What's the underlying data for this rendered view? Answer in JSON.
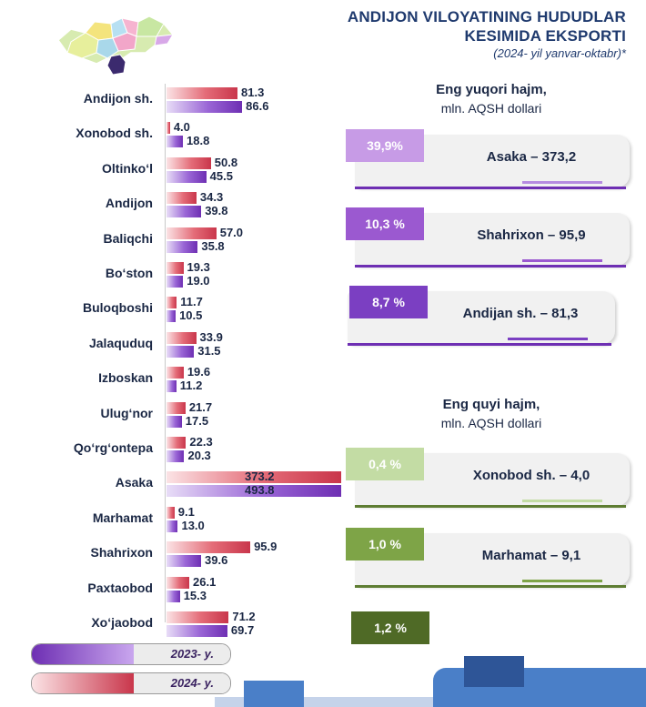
{
  "title": {
    "line1": "ANDIJON VILOYATINING HUDUDLAR",
    "line2": "KESIMIDA EKSPORTI",
    "line3": "(2024- yil yanvar-oktabr)*"
  },
  "colors": {
    "y2024": "#d9455a",
    "y2023": "#7b3fc2",
    "title": "#1f3a6e",
    "text": "#1a2744"
  },
  "icons": {
    "map": "region-map-icon"
  },
  "legend": {
    "y2023": "2023- y.",
    "y2024": "2024- y."
  },
  "chart_data": {
    "type": "bar",
    "orientation": "horizontal",
    "categories": [
      "Andijon sh.",
      "Xonobod sh.",
      "Oltinko‘l",
      "Andijon",
      "Baliqchi",
      "Bo‘ston",
      "Buloqboshi",
      "Jalaquduq",
      "Izboskan",
      "Ulug‘nor",
      "Qo‘rg‘ontepa",
      "Asaka",
      "Marhamat",
      "Shahrixon",
      "Paxtaobod",
      "Xo‘jaobod"
    ],
    "series": [
      {
        "name": "2024- y.",
        "values": [
          81.3,
          4.0,
          50.8,
          34.3,
          57.0,
          19.3,
          11.7,
          33.9,
          19.6,
          21.7,
          22.3,
          373.2,
          9.1,
          95.9,
          26.1,
          71.2
        ]
      },
      {
        "name": "2023- y.",
        "values": [
          86.6,
          18.8,
          45.5,
          39.8,
          35.8,
          19.0,
          10.5,
          31.5,
          11.2,
          17.5,
          20.3,
          493.8,
          13.0,
          39.6,
          15.3,
          69.7
        ]
      }
    ],
    "value_labels": {
      "2024": [
        "81.3",
        "4.0",
        "50.8",
        "34.3",
        "57.0",
        "19.3",
        "11.7",
        "33.9",
        "19.6",
        "21.7",
        "22.3",
        "373.2",
        "9.1",
        "95.9",
        "26.1",
        "71.2"
      ],
      "2023": [
        "86.6",
        "18.8",
        "45.5",
        "39.8",
        "35.8",
        "19.0",
        "10.5",
        "31.5",
        "11.2",
        "17.5",
        "20.3",
        "493.8",
        "13.0",
        "39.6",
        "15.3",
        "69.7"
      ]
    },
    "axis_max_visible": 200
  },
  "top": {
    "heading": "Eng yuqori hajm,",
    "unit": "mln. AQSH dollari",
    "items": [
      {
        "pct": "39,9%",
        "label": "Asaka – 373,2",
        "color": "#c79be6",
        "accent": "#6e2fb3"
      },
      {
        "pct": "10,3 %",
        "label": "Shahrixon – 95,9",
        "color": "#9b59d0",
        "accent": "#6e2fb3"
      },
      {
        "pct": "8,7 %",
        "label": "Andijan sh. – 81,3",
        "color": "#7b3fc2",
        "accent": "#6e2fb3"
      }
    ]
  },
  "bottom_list": {
    "heading": "Eng quyi hajm,",
    "unit": "mln. AQSH dollari",
    "items": [
      {
        "pct": "0,4 %",
        "label": "Xonobod sh. – 4,0",
        "color": "#c3dca4",
        "accent": "#5e7d32"
      },
      {
        "pct": "1,0 %",
        "label": "Marhamat – 9,1",
        "color": "#7ea447",
        "accent": "#5e7d32"
      },
      {
        "pct": "1,2 %",
        "label": "",
        "color": "#4f6a26",
        "accent": "#5e7d32"
      }
    ]
  }
}
